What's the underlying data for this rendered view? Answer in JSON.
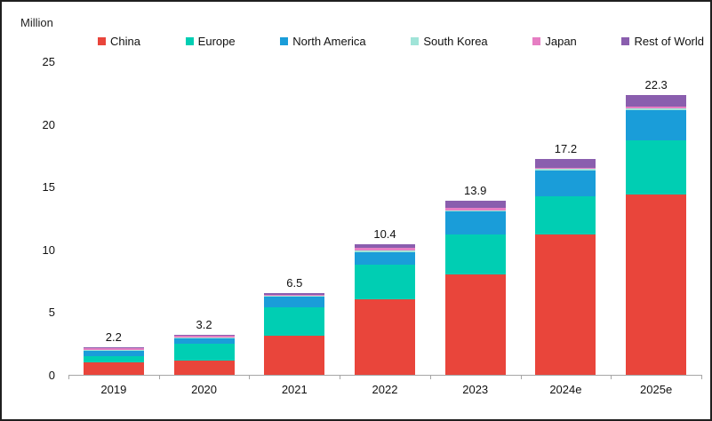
{
  "chart_data": {
    "type": "bar",
    "variant": "stacked",
    "unit_label": "Million",
    "title": "",
    "xlabel": "",
    "ylabel": "Million",
    "categories": [
      "2019",
      "2020",
      "2021",
      "2022",
      "2023",
      "2024e",
      "2025e"
    ],
    "totals": [
      2.2,
      3.2,
      6.5,
      10.4,
      13.9,
      17.2,
      22.3
    ],
    "series": [
      {
        "name": "China",
        "color": "#e9453b",
        "values": [
          1.0,
          1.1,
          3.1,
          6.0,
          8.0,
          11.2,
          14.4
        ]
      },
      {
        "name": "Europe",
        "color": "#00ceb3",
        "values": [
          0.5,
          1.4,
          2.3,
          2.8,
          3.2,
          3.0,
          4.3
        ]
      },
      {
        "name": "North America",
        "color": "#1a9dd9",
        "values": [
          0.4,
          0.4,
          0.8,
          1.0,
          1.8,
          2.1,
          2.4
        ]
      },
      {
        "name": "South Korea",
        "color": "#a0e4d8",
        "values": [
          0.1,
          0.1,
          0.1,
          0.1,
          0.1,
          0.1,
          0.15
        ]
      },
      {
        "name": "Japan",
        "color": "#e67ec3",
        "values": [
          0.1,
          0.1,
          0.1,
          0.2,
          0.2,
          0.1,
          0.15
        ]
      },
      {
        "name": "Rest of World",
        "color": "#8a5eae",
        "values": [
          0.1,
          0.1,
          0.1,
          0.3,
          0.6,
          0.7,
          0.9
        ]
      }
    ],
    "y_ticks": [
      0,
      5,
      10,
      15,
      20,
      25
    ],
    "ylim": [
      0,
      25
    ],
    "grid": false,
    "legend_position": "top",
    "colors": {
      "axis_line": "#a6a6a6",
      "text": "#111111",
      "background": "#ffffff"
    }
  }
}
